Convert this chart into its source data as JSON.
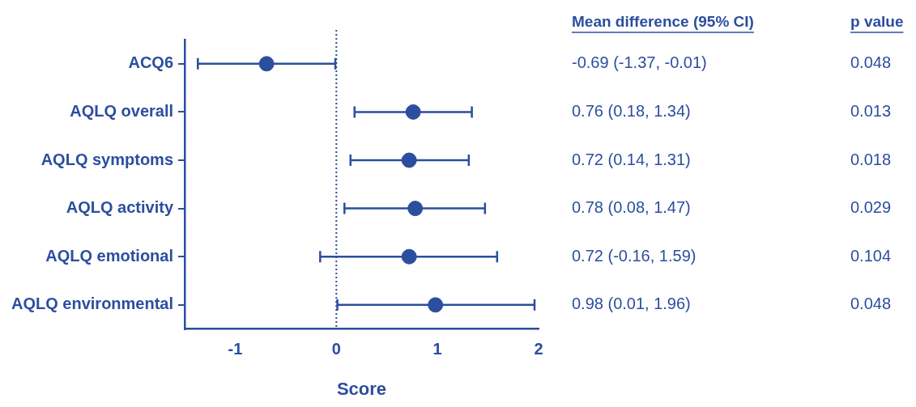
{
  "chart_data": {
    "type": "scatter",
    "orientation": "horizontal",
    "categories": [
      "ACQ6",
      "AQLQ overall",
      "AQLQ symptoms",
      "AQLQ activity",
      "AQLQ emotional",
      "AQLQ environmental"
    ],
    "values": [
      -0.69,
      0.76,
      0.72,
      0.78,
      0.72,
      0.98
    ],
    "errors": [
      [
        -1.37,
        -0.01
      ],
      [
        0.18,
        1.34
      ],
      [
        0.14,
        1.31
      ],
      [
        0.08,
        1.47
      ],
      [
        -0.16,
        1.59
      ],
      [
        0.01,
        1.96
      ]
    ],
    "annotations": [
      "Mean difference (95% CI)",
      "p value",
      "-0.69 (-1.37, -0.01)",
      "0.048",
      "0.76 (0.18, 1.34)",
      "0.013",
      "0.72 (0.14, 1.31)",
      "0.018",
      "0.78 (0.08, 1.47)",
      "0.029",
      "0.72 (-0.16, 1.59)",
      "0.104",
      "0.98 (0.01, 1.96)",
      "0.048"
    ],
    "color": "#2b4e9e",
    "xlabel": "Score",
    "xlim": [
      -1.5,
      2
    ],
    "xticks": [
      -1,
      0,
      1,
      2
    ],
    "ref_lines": [
      {
        "axis": "x",
        "value": 0,
        "line_style": "dotted"
      }
    ],
    "marker": "circle",
    "grid": false,
    "legend": false
  }
}
